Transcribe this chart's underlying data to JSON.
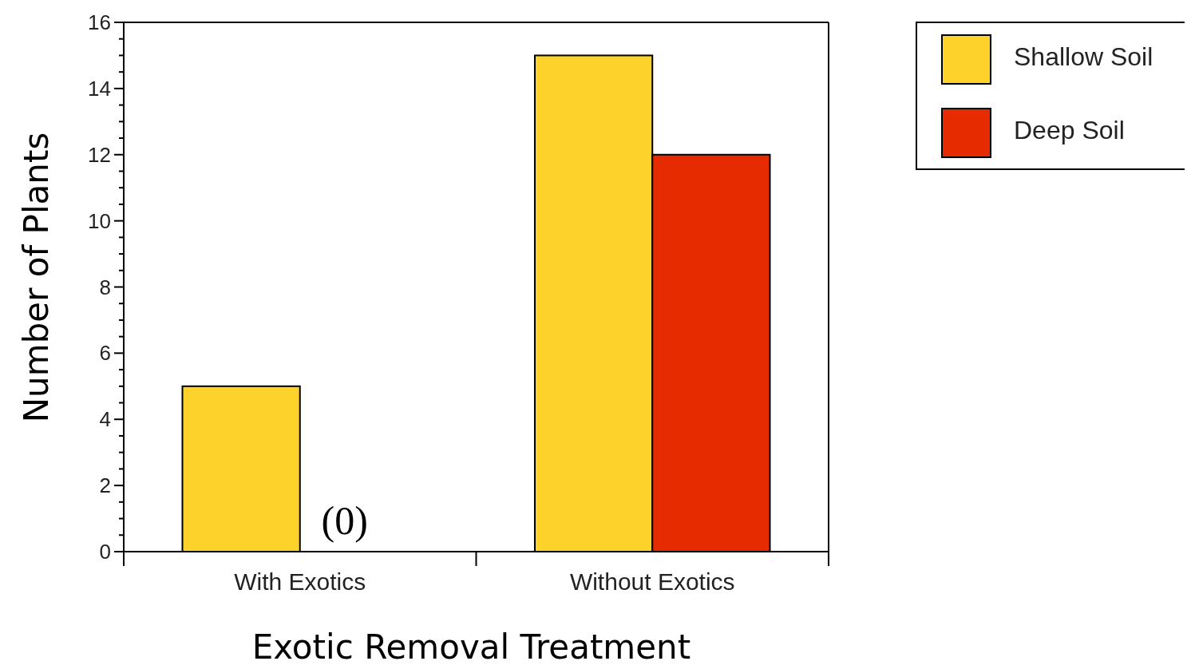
{
  "chart_data": {
    "type": "bar",
    "xlabel": "Exotic Removal Treatment",
    "ylabel": "Number of Plants",
    "categories": [
      "With Exotics",
      "Without Exotics"
    ],
    "series": [
      {
        "name": "Shallow Soil",
        "color": "#fdd22a",
        "values": [
          5,
          15
        ]
      },
      {
        "name": "Deep Soil",
        "color": "#e62b00",
        "values": [
          0,
          12
        ]
      }
    ],
    "annotations": [
      {
        "text": "(0)",
        "x": "With Exotics",
        "y": 0
      }
    ],
    "ylim": [
      0,
      16
    ],
    "yticks": [
      0,
      {
        "value": 0.5,
        "label": null
      },
      {
        "value": 1,
        "label": null
      },
      {
        "value": 1.5,
        "label": null
      },
      2,
      {
        "value": 2.5,
        "label": null
      },
      {
        "value": 3,
        "label": null
      },
      {
        "value": 3.5,
        "label": null
      },
      4,
      {
        "value": 4.5,
        "label": null
      },
      {
        "value": 5,
        "label": null
      },
      {
        "value": 5.5,
        "label": null
      },
      6,
      {
        "value": 6.5,
        "label": null
      },
      {
        "value": 7,
        "label": null
      },
      {
        "value": 7.5,
        "label": null
      },
      8,
      {
        "value": 8.5,
        "label": null
      },
      {
        "value": 9,
        "label": null
      },
      {
        "value": 9.5,
        "label": null
      },
      10,
      {
        "value": 10.5,
        "label": null
      },
      {
        "value": 11,
        "label": null
      },
      {
        "value": 11.5,
        "label": null
      },
      12,
      {
        "value": 12.5,
        "label": null
      },
      {
        "value": 13,
        "label": null
      },
      {
        "value": 13.5,
        "label": null
      },
      14,
      {
        "value": 14.5,
        "label": null
      },
      {
        "value": 15,
        "label": null
      },
      {
        "value": 15.5,
        "label": null
      },
      16
    ],
    "grid": false,
    "legend": "top right"
  }
}
